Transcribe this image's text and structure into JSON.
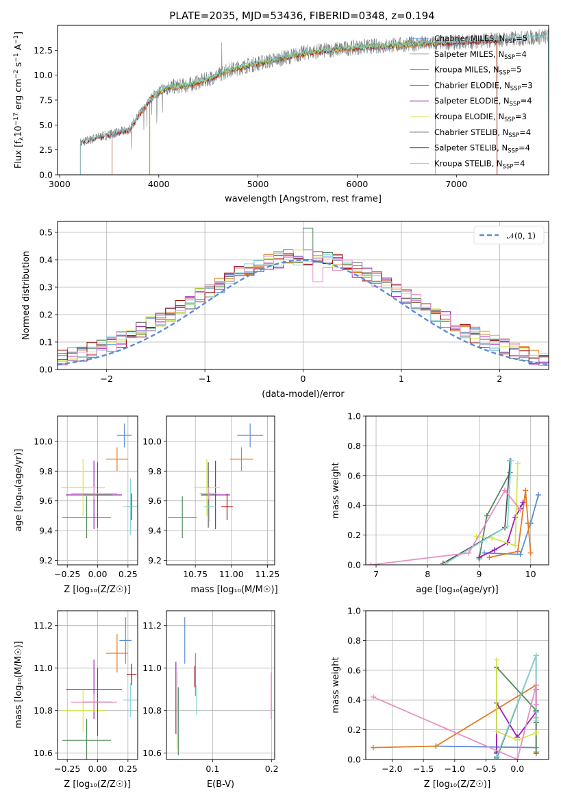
{
  "figure_title": "PLATE=2035, MJD=53436, FIBERID=0348, z=0.194",
  "colors": {
    "Chabrier MILES": "#5b8bd9",
    "Salpeter MILES": "#9a9a9a",
    "Kroupa MILES": "#e07b22",
    "Chabrier ELODIE": "#4f8a5a",
    "Salpeter ELODIE": "#9b1fb5",
    "Kroupa ELODIE": "#d4e84a",
    "Chabrier STELIB": "#555555",
    "Salpeter STELIB": "#9b1010",
    "Kroupa STELIB": "#86d6d6",
    "normal_curve": "#5b8bd9",
    "data_spectrum": "#808080",
    "pink_model": "#e58fc5"
  },
  "chart_data": [
    {
      "id": "spectrum",
      "type": "line",
      "xlabel_main": "wavelength [Angstrom, rest frame]",
      "ylabel_main": "Flux [f",
      "ylabel_sub1": "λ",
      "ylabel_mid": "10",
      "ylabel_sup1": "−17",
      "ylabel_tail": " erg cm",
      "ylabel_sup2": "−2",
      "ylabel_tail2": " s",
      "ylabel_sup3": "−1",
      "ylabel_tail3": " A",
      "ylabel_sup4": "−1",
      "ylabel_end": "]",
      "xlim": [
        2980,
        7930
      ],
      "ylim": [
        0,
        15
      ],
      "xticks": [
        3000,
        4000,
        5000,
        6000,
        7000
      ],
      "yticks": [
        0.0,
        2.5,
        5.0,
        7.5,
        10.0,
        12.5
      ],
      "ytick_labels": [
        "0.0",
        "2.5",
        "5.0",
        "7.5",
        "10.0",
        "12.5"
      ],
      "grid": false,
      "legend_position": "right",
      "legend": [
        {
          "name": "Chabrier MILES, N",
          "sub": "SSP",
          "tail": "=5",
          "key": "Chabrier MILES"
        },
        {
          "name": "Salpeter MILES, N",
          "sub": "SSP",
          "tail": "=4",
          "key": "Salpeter MILES"
        },
        {
          "name": "Kroupa MILES, N",
          "sub": "SSP",
          "tail": "=5",
          "key": "Kroupa MILES"
        },
        {
          "name": "Chabrier ELODIE, N",
          "sub": "SSP",
          "tail": "=3",
          "key": "Chabrier ELODIE"
        },
        {
          "name": "Salpeter ELODIE, N",
          "sub": "SSP",
          "tail": "=4",
          "key": "Salpeter ELODIE"
        },
        {
          "name": "Kroupa ELODIE, N",
          "sub": "SSP",
          "tail": "=3",
          "key": "Kroupa ELODIE"
        },
        {
          "name": "Chabrier STELIB, N",
          "sub": "SSP",
          "tail": "=4",
          "key": "Chabrier STELIB"
        },
        {
          "name": "Salpeter STELIB, N",
          "sub": "SSP",
          "tail": "=4",
          "key": "Salpeter STELIB"
        },
        {
          "name": "Kroupa STELIB, N",
          "sub": "SSP",
          "tail": "=4",
          "key": "Kroupa STELIB"
        }
      ],
      "spectrum_range": [
        3210,
        7930
      ],
      "envelope": [
        [
          3210,
          3.2
        ],
        [
          3400,
          3.8
        ],
        [
          3700,
          4.5
        ],
        [
          3800,
          6.0
        ],
        [
          3950,
          8.0
        ],
        [
          4100,
          8.8
        ],
        [
          4300,
          9.0
        ],
        [
          4500,
          9.6
        ],
        [
          4700,
          10.5
        ],
        [
          5000,
          11.2
        ],
        [
          5200,
          11.6
        ],
        [
          5500,
          12.3
        ],
        [
          6000,
          12.8
        ],
        [
          6500,
          13.1
        ],
        [
          7000,
          13.3
        ],
        [
          7500,
          13.6
        ],
        [
          7930,
          13.9
        ]
      ],
      "model_cutoffs": [
        {
          "key": "Chabrier MILES",
          "start": 3530,
          "end": 7410
        },
        {
          "key": "Kroupa MILES",
          "start": 3530,
          "end": 7410
        },
        {
          "key": "Salpeter STELIB",
          "start": 3210,
          "end": 7410
        },
        {
          "key": "Kroupa ELODIE",
          "start": 3910,
          "end": 6790
        },
        {
          "key": "Chabrier ELODIE",
          "start": 3910,
          "end": 6790
        },
        {
          "key": "Kroupa STELIB",
          "start": 3210,
          "end": 7930
        }
      ]
    },
    {
      "id": "residuals",
      "type": "bar",
      "xlabel": "(data-model)/error",
      "ylabel": "Normed distribution",
      "xlim": [
        -2.5,
        2.5
      ],
      "ylim": [
        0,
        0.54
      ],
      "xticks": [
        -2,
        -1,
        0,
        1,
        2
      ],
      "xtick_labels": [
        "−2",
        "−1",
        "0",
        "1",
        "2"
      ],
      "yticks": [
        0.0,
        0.1,
        0.2,
        0.3,
        0.4,
        0.5
      ],
      "ytick_labels": [
        "0.0",
        "0.1",
        "0.2",
        "0.3",
        "0.4",
        "0.5"
      ],
      "grid": true,
      "legend_position": "top-right",
      "legend_label": "𝒩(0, 1)",
      "bin_width": 0.1
    },
    {
      "id": "age_vs_Z",
      "type": "scatter",
      "xlabel": "Z [log₁₀(Z/Z☉)]",
      "ylabel": "age  [log₁₀(age/yr)]",
      "xlim": [
        -0.33,
        0.33
      ],
      "ylim": [
        9.17,
        10.17
      ],
      "xticks": [
        -0.25,
        0.0,
        0.25
      ],
      "xtick_labels": [
        "−0.25",
        "0.00",
        "0.25"
      ],
      "yticks": [
        9.2,
        9.4,
        9.6,
        9.8,
        10.0
      ],
      "ytick_labels": [
        "9.2",
        "9.4",
        "9.6",
        "9.8",
        "10.0"
      ],
      "grid": true,
      "points": [
        {
          "key": "Chabrier MILES",
          "x": 0.22,
          "y": 10.04,
          "xerr": 0.06,
          "yerr": 0.08
        },
        {
          "key": "Kroupa MILES",
          "x": 0.16,
          "y": 9.88,
          "xerr": 0.09,
          "yerr": 0.08
        },
        {
          "key": "Chabrier ELODIE",
          "x": -0.09,
          "y": 9.49,
          "xerr": 0.2,
          "yerr": 0.14
        },
        {
          "key": "Salpeter ELODIE",
          "x": -0.03,
          "y": 9.64,
          "xerr": 0.23,
          "yerr": 0.23
        },
        {
          "key": "Kroupa ELODIE",
          "x": -0.12,
          "y": 9.69,
          "xerr": 0.18,
          "yerr": 0.19
        },
        {
          "key": "Chabrier STELIB",
          "x": 0.0,
          "y": 9.64,
          "xerr": 0.12,
          "yerr": 0.22
        },
        {
          "key": "Salpeter STELIB",
          "x": 0.28,
          "y": 9.56,
          "xerr": 0.04,
          "yerr": 0.09
        },
        {
          "key": "Kroupa STELIB",
          "x": 0.27,
          "y": 9.56,
          "xerr": 0.06,
          "yerr": 0.19
        },
        {
          "key": "pink_model",
          "x": -0.03,
          "y": 9.65,
          "xerr": 0.19,
          "yerr": 0.04
        }
      ]
    },
    {
      "id": "age_vs_mass",
      "type": "scatter",
      "xlabel": "mass [log₁₀(M/M☉)]",
      "ylabel": "",
      "xlim": [
        10.55,
        11.3
      ],
      "ylim": [
        9.17,
        10.17
      ],
      "xticks": [
        10.75,
        11.0,
        11.25
      ],
      "xtick_labels": [
        "10.75",
        "11.00",
        "11.25"
      ],
      "yticks": [
        9.2,
        9.4,
        9.6,
        9.8,
        10.0
      ],
      "ytick_labels": [
        "9.2",
        "9.4",
        "9.6",
        "9.8",
        "10.0"
      ],
      "grid": true,
      "points": [
        {
          "key": "Chabrier MILES",
          "x": 11.13,
          "y": 10.04,
          "xerr": 0.09,
          "yerr": 0.08
        },
        {
          "key": "Kroupa MILES",
          "x": 11.07,
          "y": 9.88,
          "xerr": 0.08,
          "yerr": 0.08
        },
        {
          "key": "Chabrier ELODIE",
          "x": 10.66,
          "y": 9.49,
          "xerr": 0.1,
          "yerr": 0.14
        },
        {
          "key": "Salpeter ELODIE",
          "x": 10.89,
          "y": 9.64,
          "xerr": 0.1,
          "yerr": 0.23
        },
        {
          "key": "Kroupa ELODIE",
          "x": 10.83,
          "y": 9.69,
          "xerr": 0.09,
          "yerr": 0.19
        },
        {
          "key": "Chabrier STELIB",
          "x": 10.84,
          "y": 9.64,
          "xerr": 0.05,
          "yerr": 0.22
        },
        {
          "key": "Salpeter STELIB",
          "x": 10.97,
          "y": 9.56,
          "xerr": 0.04,
          "yerr": 0.09
        },
        {
          "key": "Kroupa STELIB",
          "x": 10.85,
          "y": 9.56,
          "xerr": 0.04,
          "yerr": 0.1
        },
        {
          "key": "pink_model",
          "x": 10.84,
          "y": 9.65,
          "xerr": 0.06,
          "yerr": 0.04
        }
      ]
    },
    {
      "id": "massweight_vs_age",
      "type": "line",
      "xlabel": "age  [log₁₀(age/yr)]",
      "ylabel": "mass weight",
      "xlim": [
        6.8,
        10.35
      ],
      "ylim": [
        0,
        1.0
      ],
      "xticks": [
        7,
        8,
        9,
        10
      ],
      "xtick_labels": [
        "7",
        "8",
        "9",
        "10"
      ],
      "yticks": [
        0.0,
        0.2,
        0.4,
        0.6,
        0.8,
        1.0
      ],
      "ytick_labels": [
        "0.0",
        "0.2",
        "0.4",
        "0.6",
        "0.8",
        "1.0"
      ],
      "grid": true,
      "series": [
        {
          "key": "Chabrier MILES",
          "x": [
            9.1,
            9.8,
            10.0,
            10.15
          ],
          "y": [
            0.08,
            0.07,
            0.28,
            0.47
          ]
        },
        {
          "key": "Kroupa MILES",
          "x": [
            9.2,
            9.75,
            9.9,
            9.95,
            10.0
          ],
          "y": [
            0.05,
            0.09,
            0.5,
            0.28,
            0.08
          ]
        },
        {
          "key": "Chabrier ELODIE",
          "x": [
            9.0,
            9.15,
            9.6
          ],
          "y": [
            0.04,
            0.33,
            0.62
          ]
        },
        {
          "key": "Salpeter ELODIE",
          "x": [
            9.0,
            9.3,
            9.55,
            9.7,
            9.8,
            9.85
          ],
          "y": [
            0.05,
            0.1,
            0.15,
            0.32,
            0.38,
            0.42
          ]
        },
        {
          "key": "Kroupa ELODIE",
          "x": [
            8.95,
            9.25,
            9.7,
            9.75
          ],
          "y": [
            0.19,
            0.18,
            0.13,
            0.68
          ]
        },
        {
          "key": "Chabrier STELIB",
          "x": [
            8.3,
            9.5,
            9.6
          ],
          "y": [
            0.01,
            0.25,
            0.7
          ]
        },
        {
          "key": "Kroupa STELIB",
          "x": [
            8.35,
            9.55,
            9.62
          ],
          "y": [
            0.01,
            0.26,
            0.7
          ]
        },
        {
          "key": "pink_model",
          "x": [
            6.9,
            8.8,
            9.5,
            9.8
          ],
          "y": [
            0.0,
            0.08,
            0.5,
            0.37
          ]
        }
      ]
    },
    {
      "id": "mass_vs_Z",
      "type": "scatter",
      "xlabel": "Z [log₁₀(Z/Z☉)]",
      "ylabel": "mass [log₁₀(M/M☉)]",
      "xlim": [
        -0.33,
        0.33
      ],
      "ylim": [
        10.57,
        11.27
      ],
      "xticks": [
        -0.25,
        0.0,
        0.25
      ],
      "xtick_labels": [
        "−0.25",
        "0.00",
        "0.25"
      ],
      "yticks": [
        10.6,
        10.8,
        11.0,
        11.2
      ],
      "ytick_labels": [
        "10.6",
        "10.8",
        "11.0",
        "11.2"
      ],
      "grid": true,
      "points": [
        {
          "key": "Chabrier MILES",
          "x": 0.23,
          "y": 11.13,
          "xerr": 0.05,
          "yerr": 0.11
        },
        {
          "key": "Kroupa MILES",
          "x": 0.16,
          "y": 11.07,
          "xerr": 0.09,
          "yerr": 0.09
        },
        {
          "key": "Chabrier ELODIE",
          "x": -0.09,
          "y": 10.66,
          "xerr": 0.2,
          "yerr": 0.1
        },
        {
          "key": "Salpeter ELODIE",
          "x": -0.03,
          "y": 10.9,
          "xerr": 0.23,
          "yerr": 0.14
        },
        {
          "key": "Kroupa ELODIE",
          "x": -0.12,
          "y": 10.8,
          "xerr": 0.18,
          "yerr": 0.1
        },
        {
          "key": "Chabrier STELIB",
          "x": 0.0,
          "y": 10.84,
          "xerr": 0.12,
          "yerr": 0.16
        },
        {
          "key": "Salpeter STELIB",
          "x": 0.28,
          "y": 10.97,
          "xerr": 0.04,
          "yerr": 0.05
        },
        {
          "key": "Kroupa STELIB",
          "x": 0.27,
          "y": 10.85,
          "xerr": 0.06,
          "yerr": 0.08
        },
        {
          "key": "pink_model",
          "x": -0.03,
          "y": 10.84,
          "xerr": 0.19,
          "yerr": 0.04
        }
      ]
    },
    {
      "id": "mass_vs_EBV",
      "type": "scatter",
      "xlabel": "E(B-V)",
      "ylabel": "",
      "xlim": [
        0.022,
        0.205
      ],
      "ylim": [
        10.57,
        11.27
      ],
      "xticks": [
        0.1,
        0.2
      ],
      "xtick_labels": [
        "0.1",
        "0.2"
      ],
      "yticks": [
        10.6,
        10.8,
        11.0,
        11.2
      ],
      "ytick_labels": [
        "10.6",
        "10.8",
        "11.0",
        "11.2"
      ],
      "grid": true,
      "points": [
        {
          "key": "Chabrier MILES",
          "x": 0.053,
          "y": 11.13,
          "xerr": 0,
          "yerr": 0.11
        },
        {
          "key": "Kroupa MILES",
          "x": 0.071,
          "y": 10.97,
          "xerr": 0,
          "yerr": 0.1
        },
        {
          "key": "Chabrier ELODIE",
          "x": 0.042,
          "y": 10.75,
          "xerr": 0,
          "yerr": 0.16
        },
        {
          "key": "Salpeter ELODIE",
          "x": 0.038,
          "y": 10.86,
          "xerr": 0,
          "yerr": 0.17
        },
        {
          "key": "Kroupa ELODIE",
          "x": 0.04,
          "y": 10.8,
          "xerr": 0,
          "yerr": 0.18
        },
        {
          "key": "Salpeter STELIB",
          "x": 0.07,
          "y": 10.96,
          "xerr": 0,
          "yerr": 0.05
        },
        {
          "key": "Kroupa STELIB",
          "x": 0.073,
          "y": 10.85,
          "xerr": 0,
          "yerr": 0.07
        },
        {
          "key": "pink_model",
          "x": 0.199,
          "y": 10.87,
          "xerr": 0,
          "yerr": 0.11
        }
      ]
    },
    {
      "id": "massweight_vs_Z",
      "type": "line",
      "xlabel": "Z [log₁₀(Z/Z☉)]",
      "ylabel": "mass weight",
      "xlim": [
        -2.42,
        0.5
      ],
      "ylim": [
        0,
        1.0
      ],
      "xticks": [
        -2.0,
        -1.5,
        -1.0,
        -0.5,
        0.0
      ],
      "xtick_labels": [
        "−2.0",
        "−1.5",
        "−1.0",
        "−0.5",
        "0.0"
      ],
      "yticks": [
        0.0,
        0.2,
        0.4,
        0.6,
        0.8,
        1.0
      ],
      "ytick_labels": [
        "0.0",
        "0.2",
        "0.4",
        "0.6",
        "0.8",
        "1.0"
      ],
      "grid": true,
      "series": [
        {
          "key": "Chabrier MILES",
          "x": [
            -1.3,
            0.3,
            0.3
          ],
          "y": [
            0.09,
            0.08,
            0.47
          ]
        },
        {
          "key": "Kroupa MILES",
          "x": [
            -2.3,
            -1.3,
            0.3,
            0.3,
            0.3
          ],
          "y": [
            0.08,
            0.09,
            0.5,
            0.28,
            0.05
          ]
        },
        {
          "key": "Chabrier ELODIE",
          "x": [
            -0.33,
            -0.33,
            0.3,
            0.3
          ],
          "y": [
            0.04,
            0.62,
            0.33,
            0.04
          ]
        },
        {
          "key": "Salpeter ELODIE",
          "x": [
            -0.33,
            -0.33,
            0.0,
            0.3
          ],
          "y": [
            0.05,
            0.38,
            0.15,
            0.32
          ]
        },
        {
          "key": "Kroupa ELODIE",
          "x": [
            -0.33,
            -0.33,
            0.0,
            0.3
          ],
          "y": [
            0.67,
            0.19,
            0.13,
            0.18
          ]
        },
        {
          "key": "Chabrier STELIB",
          "x": [
            -0.33,
            0.3,
            0.3
          ],
          "y": [
            0.01,
            0.7,
            0.25
          ]
        },
        {
          "key": "Kroupa STELIB",
          "x": [
            -0.33,
            0.3,
            0.3
          ],
          "y": [
            0.02,
            0.7,
            0.26
          ]
        },
        {
          "key": "pink_model",
          "x": [
            -2.3,
            0.0,
            0.3,
            0.3
          ],
          "y": [
            0.42,
            0.0,
            0.5,
            0.37
          ]
        }
      ]
    }
  ]
}
